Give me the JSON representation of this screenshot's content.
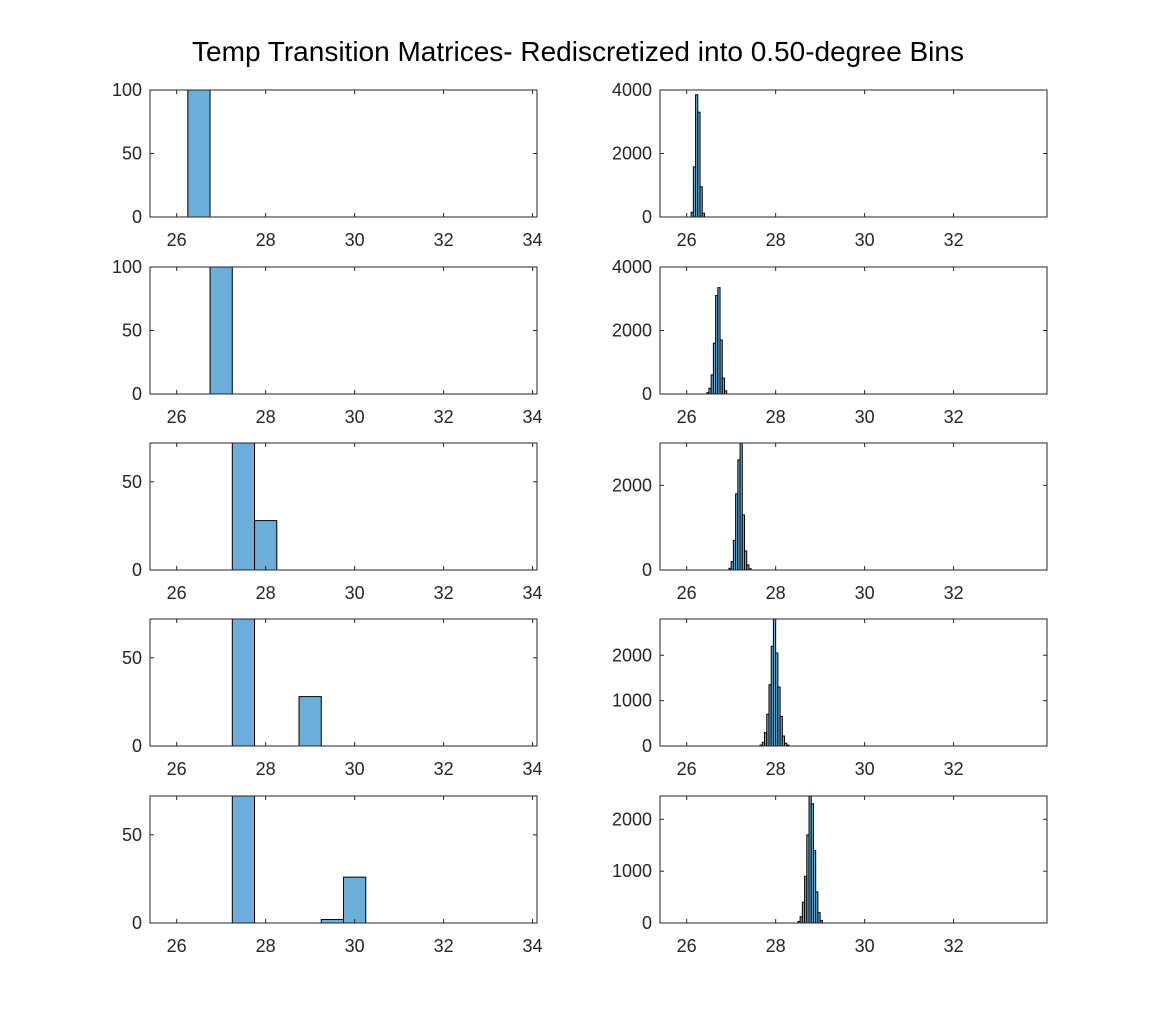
{
  "figure": {
    "title": "Temp Transition Matrices- Rediscretized into 0.50-degree Bins",
    "bar_color": "#6AAED9",
    "edge_color": "#000000",
    "axis_color": "#262626"
  },
  "chart_data": [
    {
      "type": "bar",
      "title": "",
      "xlabel": "",
      "ylabel": "",
      "xlim": [
        25.4,
        34.1
      ],
      "ylim": [
        0,
        100
      ],
      "xticks": [
        26,
        28,
        30,
        32,
        34
      ],
      "yticks": [
        0,
        50,
        100
      ],
      "bins": [
        {
          "x0": 26.25,
          "x1": 26.75,
          "value": 100
        }
      ]
    },
    {
      "type": "bar",
      "title": "",
      "xlabel": "",
      "ylabel": "",
      "xlim": [
        25.4,
        34.1
      ],
      "ylim": [
        0,
        4000
      ],
      "xticks": [
        26,
        28,
        30,
        32
      ],
      "yticks": [
        0,
        2000,
        4000
      ],
      "bins": [
        {
          "x0": 26.1,
          "x1": 26.15,
          "value": 150
        },
        {
          "x0": 26.15,
          "x1": 26.2,
          "value": 1580
        },
        {
          "x0": 26.2,
          "x1": 26.25,
          "value": 3850
        },
        {
          "x0": 26.25,
          "x1": 26.3,
          "value": 3300
        },
        {
          "x0": 26.3,
          "x1": 26.35,
          "value": 950
        },
        {
          "x0": 26.35,
          "x1": 26.4,
          "value": 120
        }
      ]
    },
    {
      "type": "bar",
      "title": "",
      "xlabel": "",
      "ylabel": "",
      "xlim": [
        25.4,
        34.1
      ],
      "ylim": [
        0,
        100
      ],
      "xticks": [
        26,
        28,
        30,
        32,
        34
      ],
      "yticks": [
        0,
        50,
        100
      ],
      "bins": [
        {
          "x0": 26.75,
          "x1": 27.25,
          "value": 100
        }
      ]
    },
    {
      "type": "bar",
      "title": "",
      "xlabel": "",
      "ylabel": "",
      "xlim": [
        25.4,
        34.1
      ],
      "ylim": [
        0,
        4000
      ],
      "xticks": [
        26,
        28,
        30,
        32
      ],
      "yticks": [
        0,
        2000,
        4000
      ],
      "bins": [
        {
          "x0": 26.45,
          "x1": 26.5,
          "value": 40
        },
        {
          "x0": 26.5,
          "x1": 26.55,
          "value": 180
        },
        {
          "x0": 26.55,
          "x1": 26.6,
          "value": 600
        },
        {
          "x0": 26.6,
          "x1": 26.65,
          "value": 1600
        },
        {
          "x0": 26.65,
          "x1": 26.7,
          "value": 3100
        },
        {
          "x0": 26.7,
          "x1": 26.75,
          "value": 3350
        },
        {
          "x0": 26.75,
          "x1": 26.8,
          "value": 1700
        },
        {
          "x0": 26.8,
          "x1": 26.85,
          "value": 500
        },
        {
          "x0": 26.85,
          "x1": 26.9,
          "value": 100
        }
      ]
    },
    {
      "type": "bar",
      "title": "",
      "xlabel": "",
      "ylabel": "",
      "xlim": [
        25.4,
        34.1
      ],
      "ylim": [
        0,
        72
      ],
      "xticks": [
        26,
        28,
        30,
        32,
        34
      ],
      "yticks": [
        0,
        50
      ],
      "bins": [
        {
          "x0": 27.25,
          "x1": 27.75,
          "value": 72
        },
        {
          "x0": 27.75,
          "x1": 28.25,
          "value": 28
        }
      ]
    },
    {
      "type": "bar",
      "title": "",
      "xlabel": "",
      "ylabel": "",
      "xlim": [
        25.4,
        34.1
      ],
      "ylim": [
        0,
        3000
      ],
      "xticks": [
        26,
        28,
        30,
        32
      ],
      "yticks": [
        0,
        2000
      ],
      "bins": [
        {
          "x0": 26.95,
          "x1": 27.0,
          "value": 40
        },
        {
          "x0": 27.0,
          "x1": 27.05,
          "value": 200
        },
        {
          "x0": 27.05,
          "x1": 27.1,
          "value": 700
        },
        {
          "x0": 27.1,
          "x1": 27.15,
          "value": 1800
        },
        {
          "x0": 27.15,
          "x1": 27.2,
          "value": 2600
        },
        {
          "x0": 27.2,
          "x1": 27.25,
          "value": 3000
        },
        {
          "x0": 27.25,
          "x1": 27.3,
          "value": 1300
        },
        {
          "x0": 27.3,
          "x1": 27.35,
          "value": 450
        },
        {
          "x0": 27.35,
          "x1": 27.4,
          "value": 120
        },
        {
          "x0": 27.4,
          "x1": 27.45,
          "value": 30
        }
      ]
    },
    {
      "type": "bar",
      "title": "",
      "xlabel": "",
      "ylabel": "",
      "xlim": [
        25.4,
        34.1
      ],
      "ylim": [
        0,
        72
      ],
      "xticks": [
        26,
        28,
        30,
        32,
        34
      ],
      "yticks": [
        0,
        50
      ],
      "bins": [
        {
          "x0": 27.25,
          "x1": 27.75,
          "value": 72
        },
        {
          "x0": 28.75,
          "x1": 29.25,
          "value": 28
        }
      ]
    },
    {
      "type": "bar",
      "title": "",
      "xlabel": "",
      "ylabel": "",
      "xlim": [
        25.4,
        34.1
      ],
      "ylim": [
        0,
        2800
      ],
      "xticks": [
        26,
        28,
        30,
        32
      ],
      "yticks": [
        0,
        1000,
        2000
      ],
      "bins": [
        {
          "x0": 27.65,
          "x1": 27.7,
          "value": 20
        },
        {
          "x0": 27.7,
          "x1": 27.75,
          "value": 80
        },
        {
          "x0": 27.75,
          "x1": 27.8,
          "value": 300
        },
        {
          "x0": 27.8,
          "x1": 27.85,
          "value": 700
        },
        {
          "x0": 27.85,
          "x1": 27.9,
          "value": 1350
        },
        {
          "x0": 27.9,
          "x1": 27.95,
          "value": 2200
        },
        {
          "x0": 27.95,
          "x1": 28.0,
          "value": 2800
        },
        {
          "x0": 28.0,
          "x1": 28.05,
          "value": 2050
        },
        {
          "x0": 28.05,
          "x1": 28.1,
          "value": 1300
        },
        {
          "x0": 28.1,
          "x1": 28.15,
          "value": 650
        },
        {
          "x0": 28.15,
          "x1": 28.2,
          "value": 220
        },
        {
          "x0": 28.2,
          "x1": 28.25,
          "value": 60
        },
        {
          "x0": 28.25,
          "x1": 28.3,
          "value": 20
        }
      ]
    },
    {
      "type": "bar",
      "title": "",
      "xlabel": "",
      "ylabel": "",
      "xlim": [
        25.4,
        34.1
      ],
      "ylim": [
        0,
        72
      ],
      "xticks": [
        26,
        28,
        30,
        32,
        34
      ],
      "yticks": [
        0,
        50
      ],
      "bins": [
        {
          "x0": 27.25,
          "x1": 27.75,
          "value": 72
        },
        {
          "x0": 29.25,
          "x1": 29.75,
          "value": 2
        },
        {
          "x0": 29.75,
          "x1": 30.25,
          "value": 26
        }
      ]
    },
    {
      "type": "bar",
      "title": "",
      "xlabel": "",
      "ylabel": "",
      "xlim": [
        25.4,
        34.1
      ],
      "ylim": [
        0,
        2450
      ],
      "xticks": [
        26,
        28,
        30,
        32
      ],
      "yticks": [
        0,
        1000,
        2000
      ],
      "bins": [
        {
          "x0": 28.5,
          "x1": 28.55,
          "value": 30
        },
        {
          "x0": 28.55,
          "x1": 28.6,
          "value": 120
        },
        {
          "x0": 28.6,
          "x1": 28.65,
          "value": 400
        },
        {
          "x0": 28.65,
          "x1": 28.7,
          "value": 900
        },
        {
          "x0": 28.7,
          "x1": 28.75,
          "value": 1700
        },
        {
          "x0": 28.75,
          "x1": 28.8,
          "value": 2450
        },
        {
          "x0": 28.8,
          "x1": 28.85,
          "value": 2300
        },
        {
          "x0": 28.85,
          "x1": 28.9,
          "value": 1400
        },
        {
          "x0": 28.9,
          "x1": 28.95,
          "value": 600
        },
        {
          "x0": 28.95,
          "x1": 29.0,
          "value": 200
        },
        {
          "x0": 29.0,
          "x1": 29.05,
          "value": 50
        }
      ]
    }
  ]
}
